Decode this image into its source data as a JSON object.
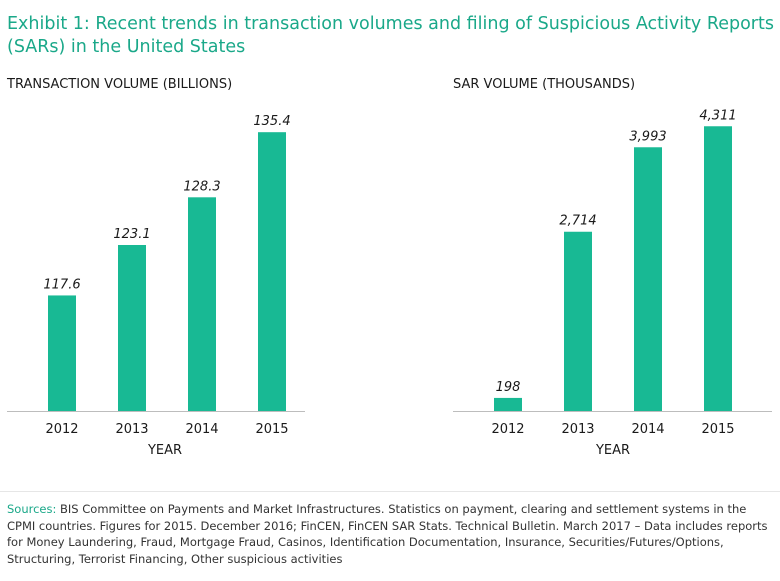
{
  "title": "Exhibit 1: Recent trends in transaction volumes and filing of Suspicious Activity Reports (SARs) in the United States",
  "colors": {
    "bar": "#18b994",
    "accent": "#1aa889",
    "axis": "#bdbdbd"
  },
  "chart_data": [
    {
      "type": "bar",
      "title": "TRANSACTION VOLUME (BILLIONS)",
      "xlabel": "YEAR",
      "ylabel": "",
      "categories": [
        "2012",
        "2013",
        "2014",
        "2015"
      ],
      "values": [
        117.6,
        123.1,
        128.3,
        135.4
      ],
      "value_labels": [
        "117.6",
        "123.1",
        "128.3",
        "135.4"
      ],
      "ylim": [
        105,
        140
      ]
    },
    {
      "type": "bar",
      "title": "SAR VOLUME (THOUSANDS)",
      "xlabel": "YEAR",
      "ylabel": "",
      "categories": [
        "2012",
        "2013",
        "2014",
        "2015"
      ],
      "values": [
        198,
        2714,
        3993,
        4311
      ],
      "value_labels": [
        "198",
        "2,714",
        "3,993",
        "4,311"
      ],
      "ylim": [
        0,
        4860
      ]
    }
  ],
  "sources": {
    "label": "Sources:",
    "text": " BIS Committee on Payments and Market Infrastructures. Statistics on payment, clearing and settlement systems in the CPMI countries. Figures for 2015. December 2016; FinCEN, FinCEN SAR Stats. Technical Bulletin. March 2017 – Data includes reports for Money Laundering, Fraud, Mortgage Fraud, Casinos, Identification Documentation, Insurance, Securities/Futures/Options, Structuring, Terrorist Financing, Other suspicious activities"
  }
}
